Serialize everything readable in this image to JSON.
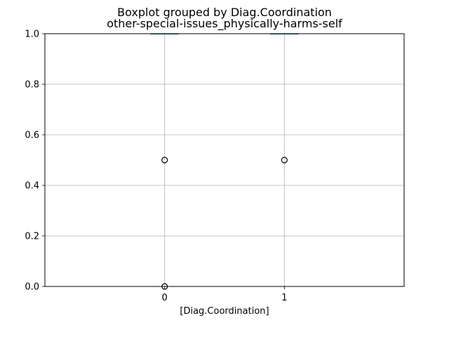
{
  "chart_data": {
    "type": "boxplot",
    "title": "Boxplot grouped by Diag.Coordination",
    "subtitle": "other-special-issues_physically-harms-self",
    "xlabel": "[Diag.Coordination]",
    "ylabel": "",
    "categories": [
      "0",
      "1"
    ],
    "ylim": [
      0,
      1.0
    ],
    "yticks": [
      "0.0",
      "0.2",
      "0.4",
      "0.6",
      "0.8",
      "1.0"
    ],
    "grid": true,
    "boxes": [
      {
        "category": "0",
        "min": 1.0,
        "q1": 1.0,
        "median": 1.0,
        "q3": 1.0,
        "max": 1.0,
        "outliers": [
          0.5,
          0.0
        ]
      },
      {
        "category": "1",
        "min": 1.0,
        "q1": 1.0,
        "median": 1.0,
        "q3": 1.0,
        "max": 1.0,
        "outliers": [
          0.5
        ]
      }
    ],
    "colors": {
      "grid": "#b0b0b0",
      "box": "#1f77b4",
      "median": "#2ca02c",
      "outlier_edge": "#000000"
    }
  }
}
